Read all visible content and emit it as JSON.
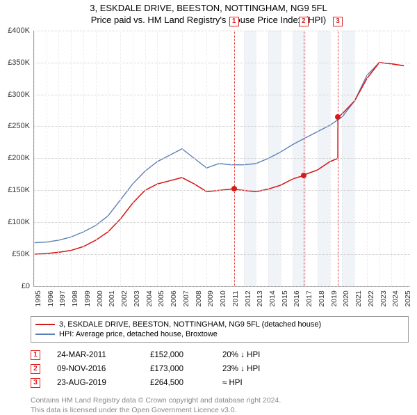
{
  "title_line1": "3, ESKDALE DRIVE, BEESTON, NOTTINGHAM, NG9 5FL",
  "title_line2": "Price paid vs. HM Land Registry's House Price Index (HPI)",
  "chart": {
    "type": "line",
    "background_color": "#ffffff",
    "grid_color": "#cccccc",
    "band_color": "#f0f3f7",
    "x_years": [
      1995,
      1996,
      1997,
      1998,
      1999,
      2000,
      2001,
      2002,
      2003,
      2004,
      2005,
      2006,
      2007,
      2008,
      2009,
      2010,
      2011,
      2012,
      2013,
      2014,
      2015,
      2016,
      2017,
      2018,
      2019,
      2020,
      2021,
      2022,
      2023,
      2024,
      2025
    ],
    "y_ticks": [
      0,
      50000,
      100000,
      150000,
      200000,
      250000,
      300000,
      350000,
      400000
    ],
    "y_tick_labels": [
      "£0",
      "£50K",
      "£100K",
      "£150K",
      "£200K",
      "£250K",
      "£300K",
      "£350K",
      "£400K"
    ],
    "xlim": [
      1995,
      2025.5
    ],
    "ylim": [
      0,
      400000
    ],
    "series": [
      {
        "name": "property",
        "label": "3, ESKDALE DRIVE, BEESTON, NOTTINGHAM, NG9 5FL (detached house)",
        "color": "#d91a1a",
        "line_width": 1.6,
        "data": [
          [
            1995,
            50000
          ],
          [
            1996,
            51000
          ],
          [
            1997,
            53000
          ],
          [
            1998,
            56000
          ],
          [
            1999,
            62000
          ],
          [
            2000,
            72000
          ],
          [
            2001,
            85000
          ],
          [
            2002,
            105000
          ],
          [
            2003,
            130000
          ],
          [
            2004,
            150000
          ],
          [
            2005,
            160000
          ],
          [
            2006,
            165000
          ],
          [
            2007,
            170000
          ],
          [
            2008,
            160000
          ],
          [
            2009,
            148000
          ],
          [
            2010,
            150000
          ],
          [
            2011,
            152000
          ],
          [
            2012,
            150000
          ],
          [
            2013,
            148000
          ],
          [
            2014,
            152000
          ],
          [
            2015,
            158000
          ],
          [
            2016,
            168000
          ],
          [
            2016.85,
            173000
          ],
          [
            2017,
            175000
          ],
          [
            2018,
            182000
          ],
          [
            2019,
            195000
          ],
          [
            2019.64,
            200000
          ],
          [
            2019.65,
            264500
          ],
          [
            2020,
            270000
          ],
          [
            2021,
            290000
          ],
          [
            2022,
            325000
          ],
          [
            2023,
            350000
          ],
          [
            2024,
            348000
          ],
          [
            2025,
            345000
          ]
        ]
      },
      {
        "name": "hpi",
        "label": "HPI: Average price, detached house, Broxtowe",
        "color": "#5b7fb5",
        "line_width": 1.4,
        "data": [
          [
            1995,
            68000
          ],
          [
            1996,
            69000
          ],
          [
            1997,
            72000
          ],
          [
            1998,
            77000
          ],
          [
            1999,
            85000
          ],
          [
            2000,
            95000
          ],
          [
            2001,
            110000
          ],
          [
            2002,
            135000
          ],
          [
            2003,
            160000
          ],
          [
            2004,
            180000
          ],
          [
            2005,
            195000
          ],
          [
            2006,
            205000
          ],
          [
            2007,
            215000
          ],
          [
            2008,
            200000
          ],
          [
            2009,
            185000
          ],
          [
            2010,
            192000
          ],
          [
            2011,
            190000
          ],
          [
            2012,
            190000
          ],
          [
            2013,
            192000
          ],
          [
            2014,
            200000
          ],
          [
            2015,
            210000
          ],
          [
            2016,
            222000
          ],
          [
            2017,
            232000
          ],
          [
            2018,
            242000
          ],
          [
            2019,
            252000
          ],
          [
            2020,
            265000
          ],
          [
            2021,
            290000
          ],
          [
            2022,
            330000
          ],
          [
            2023,
            350000
          ],
          [
            2024,
            348000
          ],
          [
            2025,
            345000
          ]
        ]
      }
    ],
    "markers": [
      {
        "num": "1",
        "x": 2011.22,
        "price": 152000
      },
      {
        "num": "2",
        "x": 2016.86,
        "price": 173000
      },
      {
        "num": "3",
        "x": 2019.64,
        "price": 264500
      }
    ],
    "band_years": [
      2011,
      2012,
      2013,
      2014,
      2015,
      2016,
      2017,
      2018,
      2019,
      2020
    ]
  },
  "legend": {
    "items": [
      {
        "color": "#d91a1a",
        "label": "3, ESKDALE DRIVE, BEESTON, NOTTINGHAM, NG9 5FL (detached house)"
      },
      {
        "color": "#5b7fb5",
        "label": "HPI: Average price, detached house, Broxtowe"
      }
    ]
  },
  "transactions": [
    {
      "num": "1",
      "date": "24-MAR-2011",
      "price": "£152,000",
      "diff": "20% ↓ HPI"
    },
    {
      "num": "2",
      "date": "09-NOV-2016",
      "price": "£173,000",
      "diff": "23% ↓ HPI"
    },
    {
      "num": "3",
      "date": "23-AUG-2019",
      "price": "£264,500",
      "diff": "≈ HPI"
    }
  ],
  "footer_line1": "Contains HM Land Registry data © Crown copyright and database right 2024.",
  "footer_line2": "This data is licensed under the Open Government Licence v3.0."
}
